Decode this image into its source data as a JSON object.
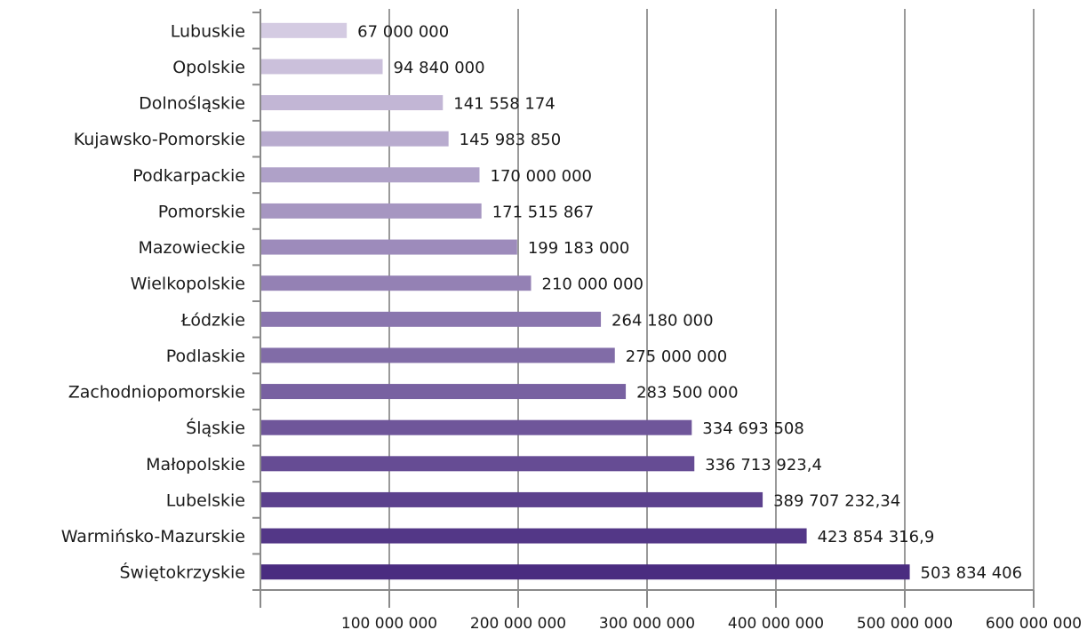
{
  "chart_data": {
    "type": "bar",
    "orientation": "horizontal",
    "categories": [
      "Lubuskie",
      "Opolskie",
      "Dolnośląskie",
      "Kujawsko-Pomorskie",
      "Podkarpackie",
      "Pomorskie",
      "Mazowieckie",
      "Wielkopolskie",
      "Łódzkie",
      "Podlaskie",
      "Zachodniopomorskie",
      "Śląskie",
      "Małopolskie",
      "Lubelskie",
      "Warmińsko-Mazurskie",
      "Świętokrzyskie"
    ],
    "values": [
      67000000,
      94840000,
      141558174,
      145983850,
      170000000,
      171515867,
      199183000,
      210000000,
      264180000,
      275000000,
      283500000,
      334693508,
      336713923.4,
      389707232.34,
      423854316.9,
      503834406
    ],
    "value_labels": [
      "67 000 000",
      "94 840 000",
      "141 558 174",
      "145 983 850",
      "170 000 000",
      "171 515 867",
      "199 183 000",
      "210 000 000",
      "264 180 000",
      "275 000 000",
      "283 500 000",
      "334 693 508",
      "336 713 923,4",
      "389 707 232,34",
      "423 854 316,9",
      "503 834 406"
    ],
    "x_ticks": [
      0,
      100000000,
      200000000,
      300000000,
      400000000,
      500000000,
      600000000
    ],
    "x_tick_labels": [
      "",
      "100 000 000",
      "200 000 000",
      "300 000 000",
      "400 000 000",
      "500 000 000",
      "600 000 000"
    ],
    "xlim": [
      0,
      600000000
    ],
    "grid": true,
    "legend": "none",
    "title": "",
    "xlabel": "",
    "ylabel": "",
    "colors": {
      "bar_light": "#d4cbe2",
      "bar_dark": "#4a2c80",
      "grid": "#9a9a9a",
      "axis": "#8a8a8a"
    }
  }
}
